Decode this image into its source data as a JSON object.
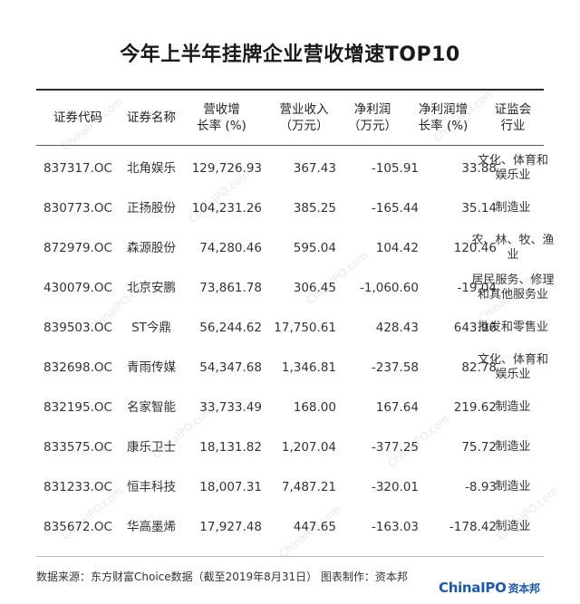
{
  "title": "今年上半年挂牌企业营收增速TOP10",
  "headers": [
    [
      "证券代码"
    ],
    [
      "证券名称"
    ],
    [
      "营收增",
      "长率 (%)"
    ],
    [
      "营业收入",
      "（万元）"
    ],
    [
      "净利润",
      "（万元）"
    ],
    [
      "净利润增",
      "长率 (%)"
    ],
    [
      "证监会",
      "行业"
    ]
  ],
  "rows": [
    {
      "code": "837317.OC",
      "name": "北角娱乐",
      "growth": "129,726.93",
      "revenue": "367.43",
      "profit": "-105.91",
      "profit_growth": "33.88",
      "industry": [
        "文化、体育和",
        "娱乐业"
      ]
    },
    {
      "code": "830773.OC",
      "name": "正扬股份",
      "growth": "104,231.26",
      "revenue": "385.25",
      "profit": "-165.44",
      "profit_growth": "35.14",
      "industry": [
        "制造业"
      ]
    },
    {
      "code": "872979.OC",
      "name": "森源股份",
      "growth": "74,280.46",
      "revenue": "595.04",
      "profit": "104.42",
      "profit_growth": "120.46",
      "industry": [
        "农、林、牧、渔业"
      ]
    },
    {
      "code": "430079.OC",
      "name": "北京安鹏",
      "growth": "73,861.78",
      "revenue": "306.45",
      "profit": "-1,060.60",
      "profit_growth": "-19.04",
      "industry": [
        "居民服务、修理",
        "和其他服务业"
      ]
    },
    {
      "code": "839503.OC",
      "name": "ST今鼎",
      "growth": "56,244.62",
      "revenue": "17,750.61",
      "profit": "428.43",
      "profit_growth": "643.96",
      "industry": [
        "批发和零售业"
      ]
    },
    {
      "code": "832698.OC",
      "name": "青雨传媒",
      "growth": "54,347.68",
      "revenue": "1,346.81",
      "profit": "-237.58",
      "profit_growth": "82.78",
      "industry": [
        "文化、体育和",
        "娱乐业"
      ]
    },
    {
      "code": "832195.OC",
      "name": "名家智能",
      "growth": "33,733.49",
      "revenue": "168.00",
      "profit": "167.64",
      "profit_growth": "219.62",
      "industry": [
        "制造业"
      ]
    },
    {
      "code": "833575.OC",
      "name": "康乐卫士",
      "growth": "18,131.82",
      "revenue": "1,207.04",
      "profit": "-377.25",
      "profit_growth": "75.72",
      "industry": [
        "制造业"
      ]
    },
    {
      "code": "831233.OC",
      "name": "恒丰科技",
      "growth": "18,007.31",
      "revenue": "7,487.21",
      "profit": "-320.01",
      "profit_growth": "-8.93",
      "industry": [
        "制造业"
      ]
    },
    {
      "code": "835672.OC",
      "name": "华高墨烯",
      "growth": "17,927.48",
      "revenue": "447.65",
      "profit": "-163.03",
      "profit_growth": "-178.42",
      "industry": [
        "制造业"
      ]
    }
  ],
  "footer": "数据来源：东方财富Choice数据（截至2019年8月31日）  图表制作：资本邦",
  "logo": {
    "latin": "ChinaIPO",
    "cn": "资本邦"
  },
  "watermark": "ChinaIPO.com"
}
